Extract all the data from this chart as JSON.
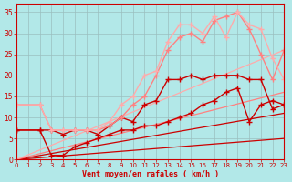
{
  "background_color": "#b2e8e8",
  "grid_color": "#9bbfbf",
  "xlabel": "Vent moyen/en rafales ( km/h )",
  "xlim": [
    0,
    23
  ],
  "ylim": [
    0,
    37
  ],
  "xticks": [
    0,
    1,
    2,
    3,
    4,
    5,
    6,
    7,
    8,
    9,
    10,
    11,
    12,
    13,
    14,
    15,
    16,
    17,
    18,
    19,
    20,
    21,
    22,
    23
  ],
  "yticks": [
    0,
    5,
    10,
    15,
    20,
    25,
    30,
    35
  ],
  "series": [
    {
      "x": [
        0,
        23
      ],
      "y": [
        0,
        5
      ],
      "color": "#cc0000",
      "linewidth": 0.9,
      "marker": null,
      "linestyle": "-"
    },
    {
      "x": [
        0,
        23
      ],
      "y": [
        0,
        11
      ],
      "color": "#cc0000",
      "linewidth": 0.9,
      "marker": null,
      "linestyle": "-"
    },
    {
      "x": [
        0,
        23
      ],
      "y": [
        0,
        16
      ],
      "color": "#ff8080",
      "linewidth": 0.9,
      "marker": null,
      "linestyle": "-"
    },
    {
      "x": [
        0,
        23
      ],
      "y": [
        0,
        26
      ],
      "color": "#ffaaaa",
      "linewidth": 0.9,
      "marker": null,
      "linestyle": "-"
    },
    {
      "x": [
        0,
        2,
        3,
        4,
        5,
        6,
        7,
        8,
        9,
        10,
        11,
        12,
        13,
        14,
        15,
        16,
        17,
        18,
        19,
        20,
        21,
        22,
        23
      ],
      "y": [
        7,
        7,
        1,
        1,
        3,
        4,
        5,
        6,
        7,
        7,
        8,
        8,
        9,
        10,
        11,
        13,
        14,
        16,
        17,
        9,
        13,
        14,
        13
      ],
      "color": "#cc0000",
      "linewidth": 1.0,
      "marker": "+",
      "markersize": 4,
      "linestyle": "-"
    },
    {
      "x": [
        0,
        2,
        3,
        4,
        5,
        6,
        7,
        8,
        9,
        10,
        11,
        12,
        13,
        14,
        15,
        16,
        17,
        18,
        19,
        20,
        21,
        22,
        23
      ],
      "y": [
        7,
        7,
        7,
        6,
        7,
        7,
        6,
        8,
        10,
        9,
        13,
        14,
        19,
        19,
        20,
        19,
        20,
        20,
        20,
        19,
        19,
        12,
        13
      ],
      "color": "#cc0000",
      "linewidth": 1.0,
      "marker": "+",
      "markersize": 4,
      "linestyle": "-"
    },
    {
      "x": [
        0,
        2,
        3,
        4,
        5,
        6,
        7,
        8,
        9,
        10,
        11,
        12,
        13,
        14,
        15,
        16,
        17,
        18,
        19,
        20,
        21,
        22,
        23
      ],
      "y": [
        13,
        13,
        7,
        7,
        7,
        7,
        7,
        8,
        10,
        13,
        15,
        20,
        26,
        29,
        30,
        28,
        33,
        34,
        35,
        31,
        25,
        19,
        26
      ],
      "color": "#ff8080",
      "linewidth": 1.0,
      "marker": "+",
      "markersize": 4,
      "linestyle": "-"
    },
    {
      "x": [
        0,
        2,
        3,
        4,
        5,
        6,
        7,
        8,
        9,
        10,
        11,
        12,
        13,
        14,
        15,
        16,
        17,
        18,
        19,
        20,
        21,
        22,
        23
      ],
      "y": [
        13,
        13,
        7,
        7,
        7,
        7,
        7,
        9,
        13,
        15,
        20,
        21,
        28,
        32,
        32,
        30,
        34,
        29,
        35,
        32,
        31,
        24,
        19
      ],
      "color": "#ffaaaa",
      "linewidth": 1.0,
      "marker": "+",
      "markersize": 4,
      "linestyle": "-"
    }
  ]
}
